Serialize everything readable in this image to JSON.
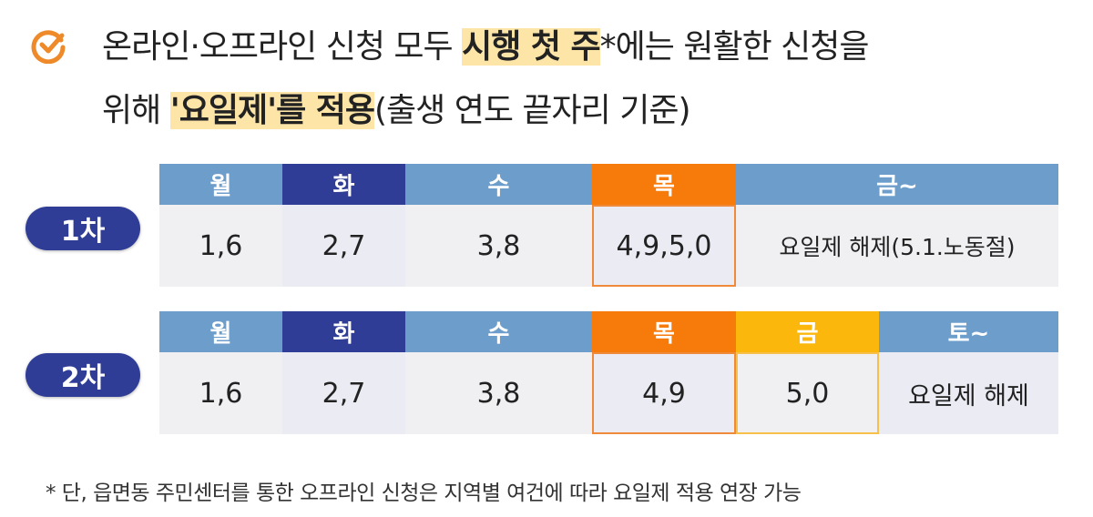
{
  "title": {
    "line1_a": "온라인·오프라인 신청 모두 ",
    "line1_hl": "시행 첫 주",
    "line1_b": "*에는 원활한 신청을",
    "line2_a": "위해 ",
    "line2_hl": "'요일제'를 적용",
    "line2_b": "(출생 연도 끝자리 기준)",
    "icon": "check-circle-icon"
  },
  "colors": {
    "light_blue": "#6d9dcb",
    "navy": "#2f3d96",
    "orange": "#f77b0b",
    "yellow": "#fbb70c"
  },
  "rounds": [
    {
      "label": "1차",
      "headers": [
        "월",
        "화",
        "수",
        "목",
        "금~"
      ],
      "values": [
        "1,6",
        "2,7",
        "3,8",
        "4,9,5,0",
        "요일제 해제(5.1.노동절)"
      ]
    },
    {
      "label": "2차",
      "headers": [
        "월",
        "화",
        "수",
        "목",
        "금",
        "토~"
      ],
      "values": [
        "1,6",
        "2,7",
        "3,8",
        "4,9",
        "5,0",
        "요일제 해제"
      ]
    }
  ],
  "footnote": "* 단, 읍면동 주민센터를 통한 오프라인 신청은 지역별 여건에 따라 요일제 적용 연장 가능"
}
